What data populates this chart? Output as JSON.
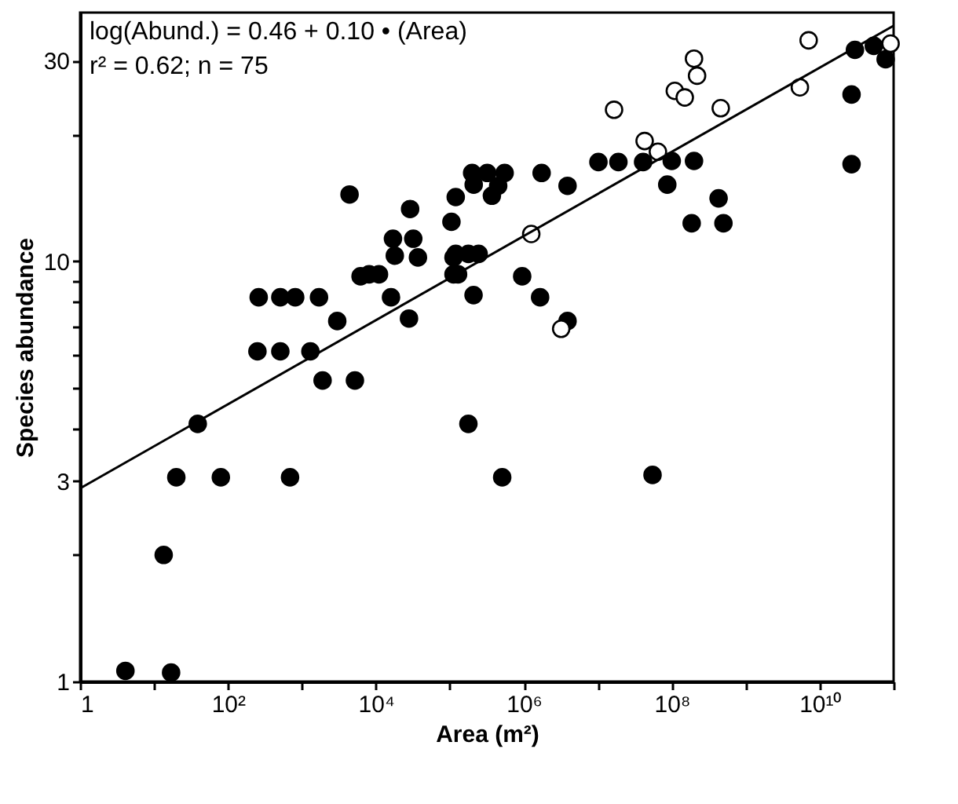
{
  "chart_data": {
    "type": "scatter",
    "xlabel": "Area (m²)",
    "ylabel": "Species abundance",
    "annotations": [
      "log(Abund.) = 0.46 + 0.10 • (Area)",
      "r² = 0.62; n = 75"
    ],
    "log": "xy",
    "grid": false,
    "marker": "circle",
    "xlim": [
      1,
      100000000000
    ],
    "ylim": [
      1,
      39
    ],
    "xticks": [
      1,
      {
        "value": 10,
        "label": null
      },
      {
        "value": 100,
        "label": "10²"
      },
      {
        "value": 1000,
        "label": null
      },
      {
        "value": 10000,
        "label": "10⁴"
      },
      {
        "value": 100000,
        "label": null
      },
      {
        "value": 1000000,
        "label": "10⁶"
      },
      {
        "value": 10000000,
        "label": null
      },
      {
        "value": 100000000,
        "label": "10⁸"
      },
      {
        "value": 1000000000,
        "label": null
      },
      {
        "value": 10000000000,
        "label": "10¹⁰"
      },
      {
        "value": 100000000000,
        "label": null
      }
    ],
    "yticks": [
      1,
      {
        "value": 2,
        "label": null
      },
      3,
      {
        "value": 4,
        "label": null
      },
      {
        "value": 5,
        "label": null
      },
      {
        "value": 6,
        "label": null
      },
      {
        "value": 7,
        "label": null
      },
      {
        "value": 8,
        "label": null
      },
      {
        "value": 9,
        "label": null
      },
      10,
      {
        "value": 20,
        "label": null
      },
      30
    ],
    "series": [
      {
        "color": "#000000",
        "x": [
          4.1,
          17,
          13.5,
          20,
          80,
          690,
          39,
          260,
          510,
          810,
          4400,
          6200,
          8100,
          11000,
          3000,
          1700,
          250,
          510,
          1300,
          16000,
          5200,
          1900,
          28000,
          17000,
          32000,
          18000,
          37000,
          29000,
          120000,
          210000,
          550000,
          105000,
          120000,
          178000,
          245000,
          112000,
          129000,
          209000,
          112000,
          320000,
          200000,
          370000,
          450000,
          950000,
          1660000,
          3900000,
          1740000,
          3900000,
          10200000,
          19000000,
          41000000,
          100000000,
          200000000,
          87000000,
          430000000,
          186000000,
          500000000,
          27000000000,
          27000000000,
          30000000000,
          54000000000,
          78000000000,
          178000,
          510000,
          55000000
        ],
        "values": [
          1.06,
          1.05,
          2.0,
          3.06,
          3.06,
          3.06,
          4.1,
          8.2,
          8.2,
          8.2,
          14.4,
          9.2,
          9.3,
          9.3,
          7.2,
          8.2,
          6.1,
          6.1,
          6.1,
          8.2,
          5.2,
          5.2,
          7.3,
          11.3,
          11.3,
          10.3,
          10.2,
          13.3,
          14.2,
          15.2,
          16.2,
          12.4,
          10.4,
          10.4,
          10.4,
          9.3,
          9.3,
          8.3,
          10.2,
          16.2,
          16.2,
          14.3,
          15.1,
          9.2,
          8.2,
          7.2,
          16.2,
          15.1,
          17.2,
          17.2,
          17.2,
          17.3,
          17.3,
          15.2,
          14.1,
          12.3,
          12.3,
          17.0,
          24.9,
          31.8,
          32.5,
          30.2,
          4.1,
          3.06,
          3.1
        ]
      },
      {
        "color": "#ffffff",
        "x": [
          1260000,
          3200000,
          16600000,
          110000000,
          150000000,
          200000000,
          220000000,
          460000000,
          43000000,
          65000000,
          5400000000,
          7100000000,
          91000000000
        ],
        "values": [
          11.6,
          6.9,
          22.9,
          25.4,
          24.5,
          30.3,
          27.6,
          23.1,
          19.3,
          18.2,
          25.9,
          33.5,
          32.9
        ]
      },
      {
        "type": "line",
        "marker": "none",
        "color": "#000000",
        "x": [
          1,
          100000000000
        ],
        "values": [
          2.88,
          36.3
        ]
      }
    ]
  }
}
